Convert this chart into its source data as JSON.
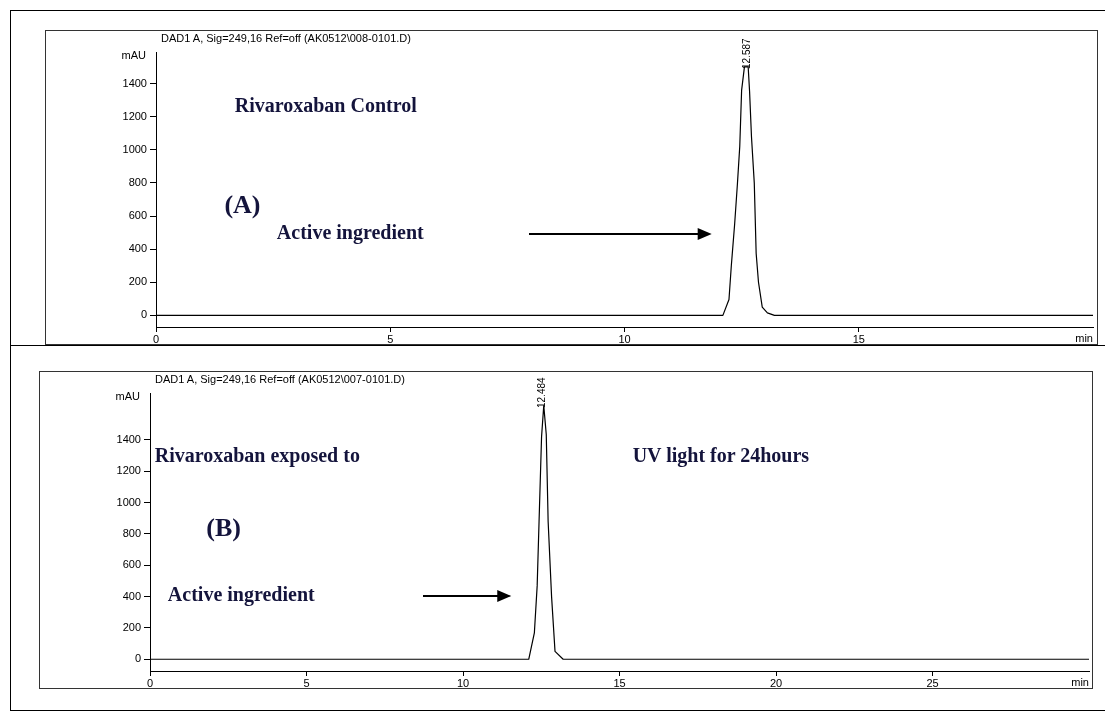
{
  "chart_data": [
    {
      "type": "line",
      "title": "DAD1 A, Sig=249,16 Ref=off (AK0512\\008-0101.D)",
      "xlabel": "min",
      "ylabel": "mAU",
      "marker": "none",
      "grid": false,
      "xlim": [
        0,
        20
      ],
      "ylim": [
        -70,
        1590
      ],
      "xticks": [
        0,
        5,
        10,
        15
      ],
      "yticks": [
        0,
        200,
        400,
        600,
        800,
        1000,
        1200,
        1400
      ],
      "annotations": [
        "Rivaroxaban Control",
        "(A)",
        "Active ingredient",
        {
          "text": "12.587",
          "x": 12.587,
          "y": 1500
        }
      ],
      "series": [
        {
          "color": "#000000",
          "x": [
            0,
            12.1,
            12.23,
            12.28,
            12.35,
            12.41,
            12.46,
            12.5,
            12.56,
            12.64,
            12.67,
            12.71,
            12.77,
            12.81,
            12.86,
            12.94,
            13.05,
            13.2,
            20
          ],
          "values": [
            0,
            0,
            96,
            300,
            547,
            793,
            1020,
            1360,
            1500,
            1500,
            1350,
            1080,
            800,
            375,
            200,
            50,
            15,
            0,
            0
          ]
        }
      ]
    },
    {
      "type": "line",
      "title": "DAD1 A, Sig=249,16 Ref=off (AK0512\\007-0101.D)",
      "xlabel": "min",
      "ylabel": "mAU",
      "marker": "none",
      "grid": false,
      "xlim": [
        0,
        30
      ],
      "ylim": [
        -75,
        1700
      ],
      "xticks": [
        0,
        5,
        10,
        15,
        20,
        25
      ],
      "yticks": [
        0,
        200,
        400,
        600,
        800,
        1000,
        1200,
        1400
      ],
      "annotations": [
        "Rivaroxaban exposed to",
        "(B)",
        "UV light for 24hours",
        "Active ingredient",
        {
          "text": "12.484",
          "x": 12.484,
          "y": 1620
        }
      ],
      "series": [
        {
          "color": "#000000",
          "x": [
            0,
            12.1,
            12.28,
            12.37,
            12.43,
            12.51,
            12.58,
            12.66,
            12.72,
            12.83,
            12.94,
            13.2,
            30
          ],
          "values": [
            0,
            0,
            168,
            470,
            880,
            1420,
            1620,
            1435,
            880,
            400,
            50,
            0,
            0
          ]
        }
      ]
    }
  ]
}
